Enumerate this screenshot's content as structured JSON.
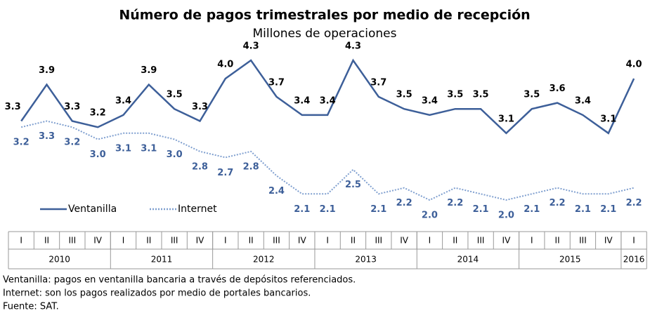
{
  "chart_data": {
    "type": "line",
    "title": "Número de pagos trimestrales por medio de recepción",
    "subtitle": "Millones de operaciones",
    "categories": [
      "I",
      "II",
      "III",
      "IV",
      "I",
      "II",
      "III",
      "IV",
      "I",
      "II",
      "III",
      "IV",
      "I",
      "II",
      "III",
      "IV",
      "I",
      "II",
      "III",
      "IV",
      "I",
      "II",
      "III",
      "IV",
      "I"
    ],
    "years": [
      "2010",
      "2011",
      "2012",
      "2013",
      "2014",
      "2015",
      "2016"
    ],
    "series": [
      {
        "name": "Ventanilla",
        "color": "#3d5f99",
        "style": "solid",
        "values": [
          3.3,
          3.9,
          3.3,
          3.2,
          3.4,
          3.9,
          3.5,
          3.3,
          4.0,
          4.3,
          3.7,
          3.4,
          3.4,
          4.3,
          3.7,
          3.5,
          3.4,
          3.5,
          3.5,
          3.1,
          3.5,
          3.6,
          3.4,
          3.1,
          4.0
        ],
        "value_labels": [
          "3.3",
          "3.9",
          "3.3",
          "3.2",
          "3.4",
          "3.9",
          "3.5",
          "3.3",
          "4.0",
          "4.3",
          "3.7",
          "3.4",
          "3.4",
          "4.3",
          "3.7",
          "3.5",
          "3.4",
          "3.5",
          "3.5",
          "3.1",
          "3.5",
          "3.6",
          "3.4",
          "3.1",
          "4.0"
        ]
      },
      {
        "name": "Internet",
        "color": "#7f9fcf",
        "style": "dotted",
        "values": [
          3.2,
          3.3,
          3.2,
          3.0,
          3.1,
          3.1,
          3.0,
          2.8,
          2.7,
          2.8,
          2.4,
          2.1,
          2.1,
          2.5,
          2.1,
          2.2,
          2.0,
          2.2,
          2.1,
          2.0,
          2.1,
          2.2,
          2.1,
          2.1,
          2.2
        ],
        "value_labels": [
          "3.2",
          "3.3",
          "3.2",
          "3.0",
          "3.1",
          "3.1",
          "3.0",
          "2.8",
          "2.7",
          "2.8",
          "2.4",
          "2.1",
          "2.1",
          "2.5",
          "2.1",
          "2.2",
          "2.0",
          "2.2",
          "2.1",
          "2.0",
          "2.1",
          "2.2",
          "2.1",
          "2.1",
          "2.2"
        ]
      }
    ],
    "notes": [
      "Ventanilla: pagos en ventanilla bancaria a través de depósitos referenciados.",
      "Internet: son los pagos realizados por medio de portales bancarios.",
      "Fuente: SAT."
    ]
  }
}
